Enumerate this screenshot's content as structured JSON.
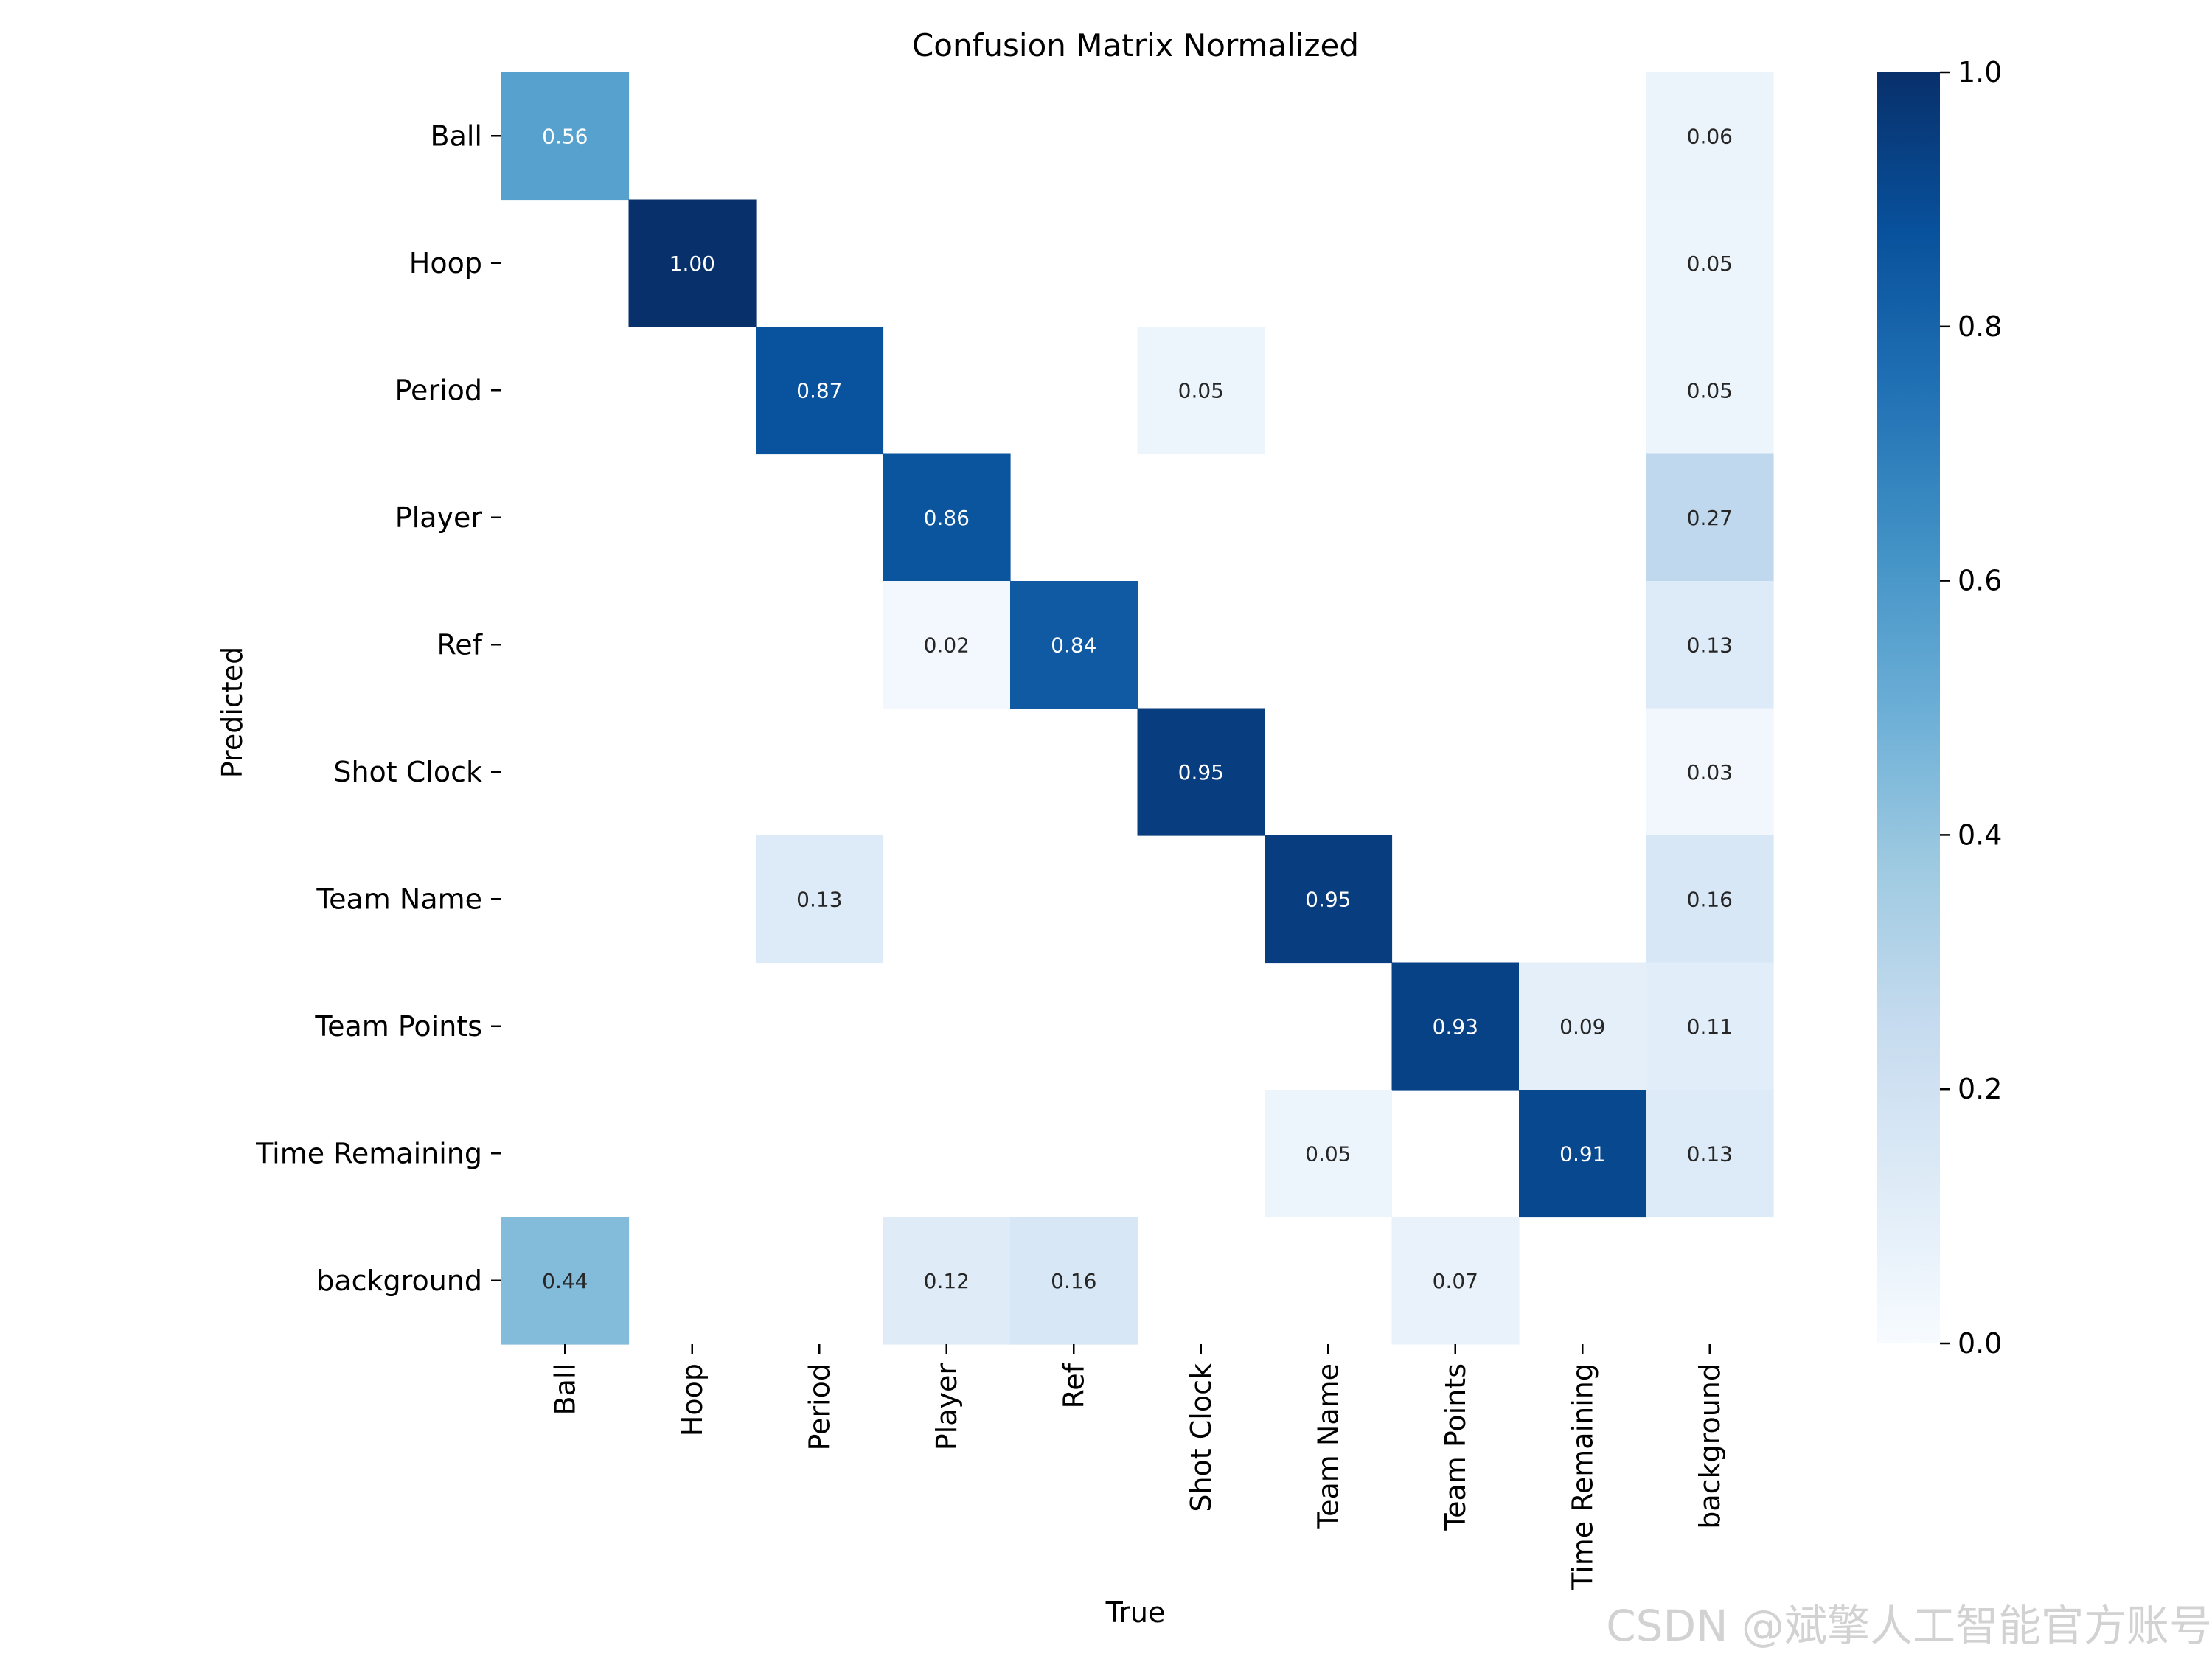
{
  "chart_data": {
    "type": "heatmap",
    "title": "Confusion Matrix Normalized",
    "xlabel": "True",
    "ylabel": "Predicted",
    "x_categories": [
      "Ball",
      "Hoop",
      "Period",
      "Player",
      "Ref",
      "Shot Clock",
      "Team Name",
      "Team Points",
      "Time Remaining",
      "background"
    ],
    "y_categories": [
      "Ball",
      "Hoop",
      "Period",
      "Player",
      "Ref",
      "Shot Clock",
      "Team Name",
      "Team Points",
      "Time Remaining",
      "background"
    ],
    "values": [
      [
        0.56,
        null,
        null,
        null,
        null,
        null,
        null,
        null,
        null,
        0.06
      ],
      [
        null,
        1.0,
        null,
        null,
        null,
        null,
        null,
        null,
        null,
        0.05
      ],
      [
        null,
        null,
        0.87,
        null,
        null,
        0.05,
        null,
        null,
        null,
        0.05
      ],
      [
        null,
        null,
        null,
        0.86,
        null,
        null,
        null,
        null,
        null,
        0.27
      ],
      [
        null,
        null,
        null,
        0.02,
        0.84,
        null,
        null,
        null,
        null,
        0.13
      ],
      [
        null,
        null,
        null,
        null,
        null,
        0.95,
        null,
        null,
        null,
        0.03
      ],
      [
        null,
        null,
        0.13,
        null,
        null,
        null,
        0.95,
        null,
        null,
        0.16
      ],
      [
        null,
        null,
        null,
        null,
        null,
        null,
        null,
        0.93,
        0.09,
        0.11
      ],
      [
        null,
        null,
        null,
        null,
        null,
        null,
        0.05,
        null,
        0.91,
        0.13
      ],
      [
        0.44,
        null,
        null,
        0.12,
        0.16,
        null,
        null,
        0.07,
        null,
        null
      ]
    ],
    "colormap": "Blues",
    "colorbar": {
      "range": [
        0.0,
        1.0
      ],
      "ticks": [
        "0.0",
        "0.2",
        "0.4",
        "0.6",
        "0.8",
        "1.0"
      ]
    },
    "value_format": "0.00"
  },
  "watermark": "CSDN @斌擎人工智能官方账号"
}
